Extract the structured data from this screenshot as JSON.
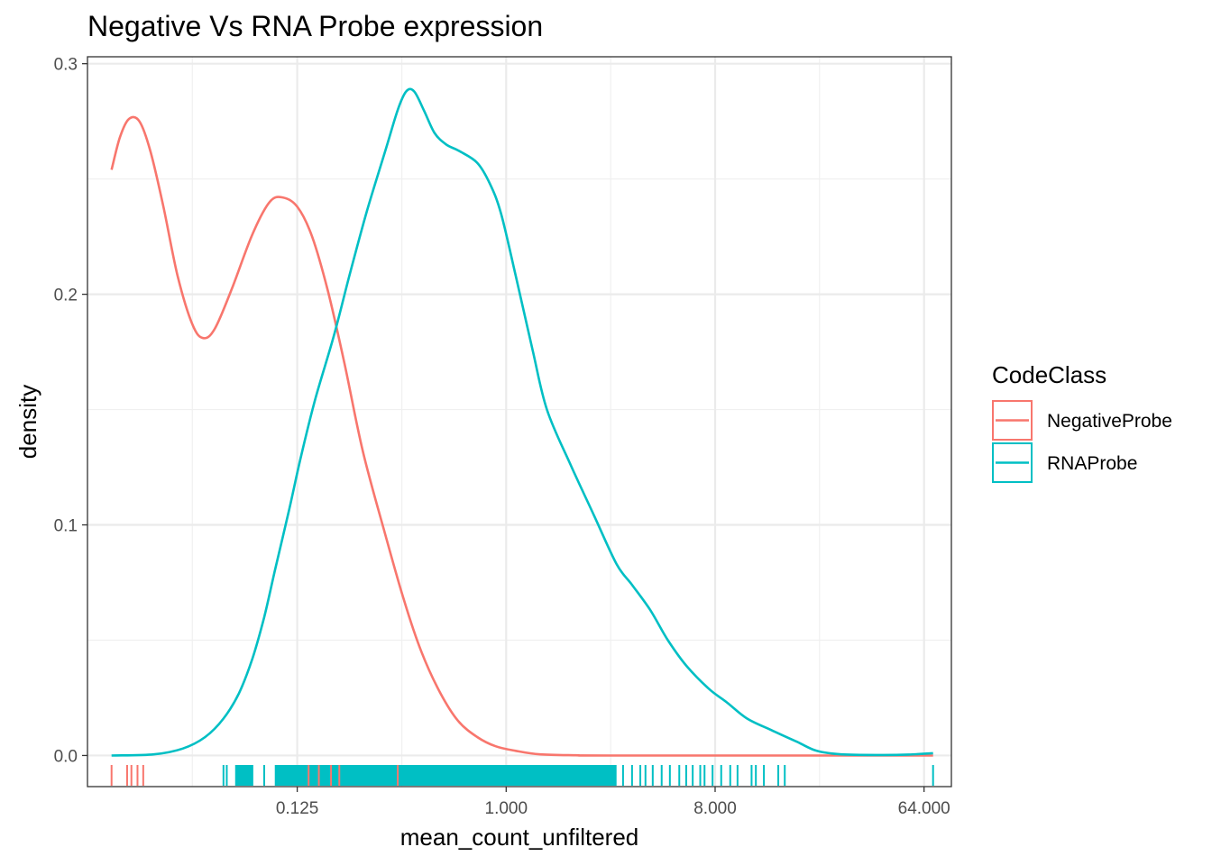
{
  "chart_data": {
    "type": "density",
    "title": "Negative Vs RNA Probe expression",
    "xlabel": "mean_count_unfiltered",
    "ylabel": "density",
    "x_scale": "log2",
    "xlim": [
      0.0155,
      84
    ],
    "ylim": [
      -0.0135,
      0.303
    ],
    "x_ticks": [
      0.125,
      1,
      8,
      64
    ],
    "x_tick_labels": [
      "0.125",
      "1.000",
      "8.000",
      "64.000"
    ],
    "y_ticks": [
      0,
      0.1,
      0.2,
      0.3
    ],
    "y_tick_labels": [
      "0.0",
      "0.1",
      "0.2",
      "0.3"
    ],
    "grid": true,
    "legend": {
      "title": "CodeClass",
      "position": "right"
    },
    "series": [
      {
        "name": "NegativeProbe",
        "color": "#F8766D",
        "density": [
          [
            0.0197,
            0.254
          ],
          [
            0.0214,
            0.268
          ],
          [
            0.0234,
            0.276
          ],
          [
            0.026,
            0.275
          ],
          [
            0.029,
            0.262
          ],
          [
            0.033,
            0.238
          ],
          [
            0.038,
            0.208
          ],
          [
            0.044,
            0.187
          ],
          [
            0.049,
            0.181
          ],
          [
            0.055,
            0.185
          ],
          [
            0.065,
            0.202
          ],
          [
            0.08,
            0.226
          ],
          [
            0.095,
            0.24
          ],
          [
            0.108,
            0.242
          ],
          [
            0.125,
            0.238
          ],
          [
            0.145,
            0.225
          ],
          [
            0.17,
            0.201
          ],
          [
            0.2,
            0.17
          ],
          [
            0.24,
            0.132
          ],
          [
            0.3,
            0.096
          ],
          [
            0.36,
            0.068
          ],
          [
            0.43,
            0.045
          ],
          [
            0.52,
            0.027
          ],
          [
            0.62,
            0.015
          ],
          [
            0.75,
            0.008
          ],
          [
            0.9,
            0.004
          ],
          [
            1.1,
            0.002
          ],
          [
            1.4,
            0.0005
          ],
          [
            2.0,
            0.0001
          ],
          [
            3.0,
            0
          ],
          [
            70.0,
            0
          ]
        ],
        "rug": [
          0.0197,
          0.023,
          0.024,
          0.0255,
          0.027,
          0.14,
          0.155,
          0.175,
          0.19,
          0.34
        ]
      },
      {
        "name": "RNAProbe",
        "color": "#00BFC4",
        "density": [
          [
            0.0197,
            0.0
          ],
          [
            0.03,
            0.0005
          ],
          [
            0.04,
            0.003
          ],
          [
            0.05,
            0.008
          ],
          [
            0.06,
            0.016
          ],
          [
            0.07,
            0.027
          ],
          [
            0.08,
            0.042
          ],
          [
            0.09,
            0.06
          ],
          [
            0.1,
            0.08
          ],
          [
            0.115,
            0.106
          ],
          [
            0.13,
            0.13
          ],
          [
            0.15,
            0.155
          ],
          [
            0.18,
            0.182
          ],
          [
            0.21,
            0.208
          ],
          [
            0.25,
            0.236
          ],
          [
            0.3,
            0.262
          ],
          [
            0.34,
            0.28
          ],
          [
            0.37,
            0.288
          ],
          [
            0.4,
            0.288
          ],
          [
            0.44,
            0.28
          ],
          [
            0.49,
            0.27
          ],
          [
            0.55,
            0.265
          ],
          [
            0.63,
            0.262
          ],
          [
            0.75,
            0.257
          ],
          [
            0.85,
            0.248
          ],
          [
            0.95,
            0.235
          ],
          [
            1.1,
            0.208
          ],
          [
            1.3,
            0.176
          ],
          [
            1.5,
            0.15
          ],
          [
            1.9,
            0.126
          ],
          [
            2.4,
            0.104
          ],
          [
            3.0,
            0.083
          ],
          [
            3.5,
            0.074
          ],
          [
            4.2,
            0.063
          ],
          [
            5.0,
            0.05
          ],
          [
            6.0,
            0.039
          ],
          [
            7.5,
            0.029
          ],
          [
            9.0,
            0.023
          ],
          [
            11.0,
            0.016
          ],
          [
            14.0,
            0.011
          ],
          [
            18.0,
            0.006
          ],
          [
            22.0,
            0.002
          ],
          [
            28.0,
            0.0005
          ],
          [
            40.0,
            0.0002
          ],
          [
            55.0,
            0.0004
          ],
          [
            70.0,
            0.001
          ]
        ],
        "rug_ranges": [
          [
            0.068,
            0.08
          ],
          [
            0.1,
            3.0
          ]
        ],
        "rug": [
          0.06,
          0.062,
          0.068,
          0.07,
          0.08,
          0.09,
          3.2,
          3.5,
          3.8,
          4.0,
          4.3,
          4.7,
          5.1,
          5.6,
          6.0,
          6.4,
          6.9,
          7.2,
          7.8,
          8.5,
          9.3,
          10.0,
          11.5,
          12.0,
          13.0,
          15.0,
          16.0,
          70.0
        ]
      }
    ]
  }
}
